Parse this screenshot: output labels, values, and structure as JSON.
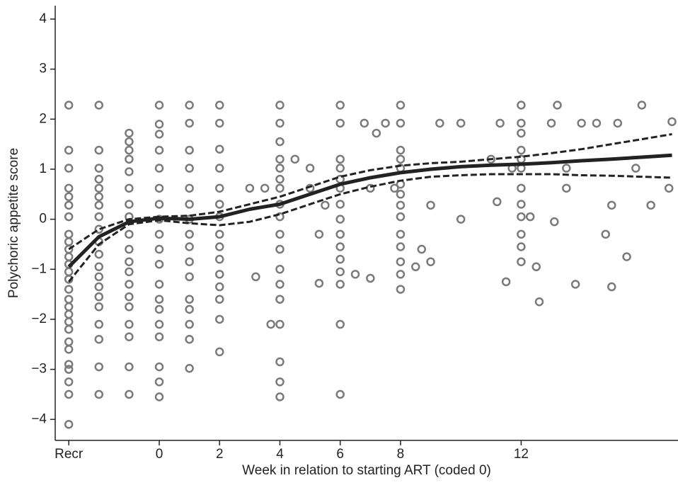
{
  "chart_data": {
    "type": "scatter",
    "xlabel": "Week in relation to starting ART (coded 0)",
    "ylabel": "Polychoric appetite score",
    "xlim": [
      -3.45,
      17.2
    ],
    "ylim": [
      -4.42,
      4.24
    ],
    "xticks": [
      {
        "value": -3,
        "label": "Recr"
      },
      0,
      2,
      4,
      6,
      8,
      12
    ],
    "yticks": [
      {
        "value": -4,
        "label": "−4"
      },
      {
        "value": -3,
        "label": "−3"
      },
      {
        "value": -2,
        "label": "−2"
      },
      {
        "value": -1,
        "label": "−1"
      },
      0,
      1,
      2,
      3,
      4
    ],
    "series": [
      {
        "mode": "markers",
        "color": "#7a7a7a",
        "x": [
          -3,
          -3,
          -3,
          -3,
          -3,
          -3,
          -3,
          -3,
          -3,
          -3,
          -3,
          -3,
          -3,
          -3,
          -3,
          -3,
          -3,
          -3,
          -3,
          -3,
          -3,
          -3,
          -3,
          -3,
          -3,
          -3,
          -3,
          -2,
          -2,
          -2,
          -2,
          -2,
          -2,
          -2,
          -2,
          -2,
          -2,
          -2,
          -2,
          -2,
          -2,
          -2,
          -2,
          -2,
          -2,
          -2,
          -2,
          -1,
          -1,
          -1,
          -1,
          -1,
          -1,
          -1,
          -1,
          -1,
          -1,
          -1,
          -1,
          -1,
          -1,
          -1,
          -1,
          -1,
          -1,
          -1,
          0,
          0,
          0,
          0,
          0,
          0,
          0,
          0,
          0,
          0,
          0,
          0,
          0,
          0,
          0,
          0,
          0,
          0,
          0,
          1,
          1,
          1,
          1,
          1,
          1,
          1,
          1,
          1,
          1,
          1,
          1,
          1,
          1,
          1,
          1,
          2,
          2,
          2,
          2,
          2,
          2,
          2,
          2,
          2,
          2,
          2,
          2,
          2,
          2,
          2,
          4,
          4,
          4,
          4,
          4,
          4,
          4,
          4,
          4,
          4,
          4,
          4,
          4,
          4,
          4,
          4,
          4,
          4,
          6,
          6,
          6,
          6,
          6,
          6,
          6,
          6,
          6,
          6,
          6,
          6,
          6,
          6,
          6,
          8,
          8,
          8,
          8,
          8,
          8,
          8,
          8,
          8,
          8,
          8,
          8,
          8,
          8,
          12,
          12,
          12,
          12,
          12,
          12,
          12,
          12,
          12,
          12,
          12,
          12,
          3,
          3.5,
          3.2,
          3.7,
          5,
          5,
          5.3,
          5.3,
          4.5,
          5.5,
          6.5,
          7,
          7,
          7.2,
          6.8,
          7.5,
          7.8,
          8.5,
          8.7,
          9,
          9,
          9.3,
          10,
          10,
          11,
          11.2,
          11.5,
          11.7,
          11.3,
          13,
          13.2,
          13.5,
          13.5,
          13.8,
          14,
          14.5,
          14.8,
          15,
          15,
          15.2,
          15.5,
          15.8,
          16,
          16.3,
          17,
          16.9,
          12.5,
          12.6,
          13.1,
          12.3
        ],
        "values": [
          2.28,
          1.38,
          1.02,
          0.62,
          0.45,
          0.28,
          0.05,
          -0.3,
          -0.45,
          -0.6,
          -0.75,
          -0.9,
          -1.05,
          -1.2,
          -1.4,
          -1.6,
          -1.75,
          -1.9,
          -2.05,
          -2.2,
          -2.45,
          -2.6,
          -2.9,
          -3.0,
          -3.25,
          -3.5,
          -4.1,
          2.28,
          1.38,
          1.02,
          0.8,
          0.62,
          0.45,
          0.28,
          0.05,
          -0.2,
          -0.45,
          -0.7,
          -0.95,
          -1.15,
          -1.35,
          -1.55,
          -1.75,
          -2.1,
          -2.4,
          -2.95,
          -3.5,
          1.72,
          1.55,
          1.38,
          1.2,
          0.95,
          0.62,
          0.3,
          0.05,
          -0.3,
          -0.6,
          -0.85,
          -1.05,
          -1.3,
          -1.55,
          -1.75,
          -2.1,
          -2.35,
          -2.95,
          -3.5,
          2.28,
          1.9,
          1.7,
          1.38,
          1.02,
          0.62,
          0.3,
          0.0,
          -0.3,
          -0.6,
          -0.9,
          -1.3,
          -1.6,
          -1.8,
          -2.1,
          -2.35,
          -2.95,
          -3.25,
          -3.55,
          2.28,
          1.92,
          1.38,
          1.02,
          0.62,
          0.3,
          0.0,
          -0.3,
          -0.55,
          -0.85,
          -1.15,
          -1.6,
          -1.8,
          -2.1,
          -2.4,
          -2.98,
          2.28,
          1.92,
          1.4,
          1.02,
          0.62,
          0.3,
          0.05,
          -0.3,
          -0.55,
          -0.8,
          -1.1,
          -1.35,
          -1.6,
          -2.0,
          -2.65,
          2.28,
          1.92,
          1.55,
          1.2,
          1.02,
          0.8,
          0.62,
          0.3,
          0.05,
          -0.3,
          -0.6,
          -1.0,
          -1.3,
          -1.6,
          -2.1,
          -2.85,
          -3.25,
          -3.55,
          2.28,
          1.92,
          1.2,
          1.02,
          0.8,
          0.62,
          0.3,
          0.0,
          -0.3,
          -0.55,
          -0.8,
          -1.05,
          -1.3,
          -2.1,
          -3.5,
          2.28,
          1.92,
          1.38,
          1.2,
          1.02,
          0.7,
          0.5,
          0.28,
          0.05,
          -0.3,
          -0.55,
          -0.85,
          -1.1,
          -1.4,
          2.28,
          1.92,
          1.72,
          1.38,
          1.2,
          1.02,
          0.62,
          0.3,
          0.05,
          -0.3,
          -0.55,
          -0.85,
          0.62,
          0.62,
          -1.15,
          -2.1,
          0.62,
          1.02,
          -0.3,
          -1.28,
          1.2,
          0.28,
          -1.1,
          -1.18,
          0.62,
          1.72,
          1.92,
          1.92,
          0.62,
          -0.95,
          -0.6,
          -0.85,
          0.28,
          1.92,
          1.92,
          0,
          1.2,
          0.35,
          -1.25,
          1.02,
          1.92,
          1.92,
          2.28,
          1.02,
          0.62,
          -1.3,
          1.92,
          1.92,
          -0.3,
          0.28,
          -1.35,
          1.92,
          -0.75,
          1.02,
          2.28,
          0.28,
          1.95,
          0.62,
          -0.95,
          -1.65,
          -0.05,
          0.05
        ]
      },
      {
        "mode": "line",
        "color": "#222222",
        "x": [
          -3,
          -2,
          -1,
          0,
          1,
          2,
          3,
          4,
          5,
          6,
          7,
          8,
          9,
          10,
          11,
          12,
          13,
          14,
          15,
          16,
          17
        ],
        "values": [
          -0.95,
          -0.35,
          -0.05,
          0.02,
          0.0,
          0.05,
          0.2,
          0.3,
          0.5,
          0.7,
          0.83,
          0.93,
          1.0,
          1.05,
          1.08,
          1.1,
          1.13,
          1.17,
          1.2,
          1.24,
          1.28
        ]
      },
      {
        "mode": "dashed",
        "color": "#222222",
        "x": [
          -3,
          -2,
          -1,
          0,
          1,
          2,
          3,
          4,
          5,
          6,
          7,
          8,
          9,
          10,
          11,
          12,
          13,
          14,
          15,
          16,
          17
        ],
        "values": [
          -0.6,
          -0.2,
          0.0,
          0.05,
          0.07,
          0.15,
          0.3,
          0.45,
          0.65,
          0.85,
          0.98,
          1.07,
          1.12,
          1.15,
          1.2,
          1.25,
          1.32,
          1.4,
          1.5,
          1.6,
          1.7
        ]
      },
      {
        "mode": "dashed",
        "color": "#222222",
        "x": [
          -3,
          -2,
          -1,
          0,
          1,
          2,
          3,
          4,
          5,
          6,
          7,
          8,
          9,
          10,
          11,
          12,
          13,
          14,
          15,
          16,
          17
        ],
        "values": [
          -1.25,
          -0.5,
          -0.1,
          -0.02,
          -0.08,
          -0.12,
          -0.05,
          0.1,
          0.3,
          0.5,
          0.65,
          0.77,
          0.85,
          0.88,
          0.9,
          0.9,
          0.9,
          0.88,
          0.87,
          0.85,
          0.83
        ]
      }
    ]
  }
}
